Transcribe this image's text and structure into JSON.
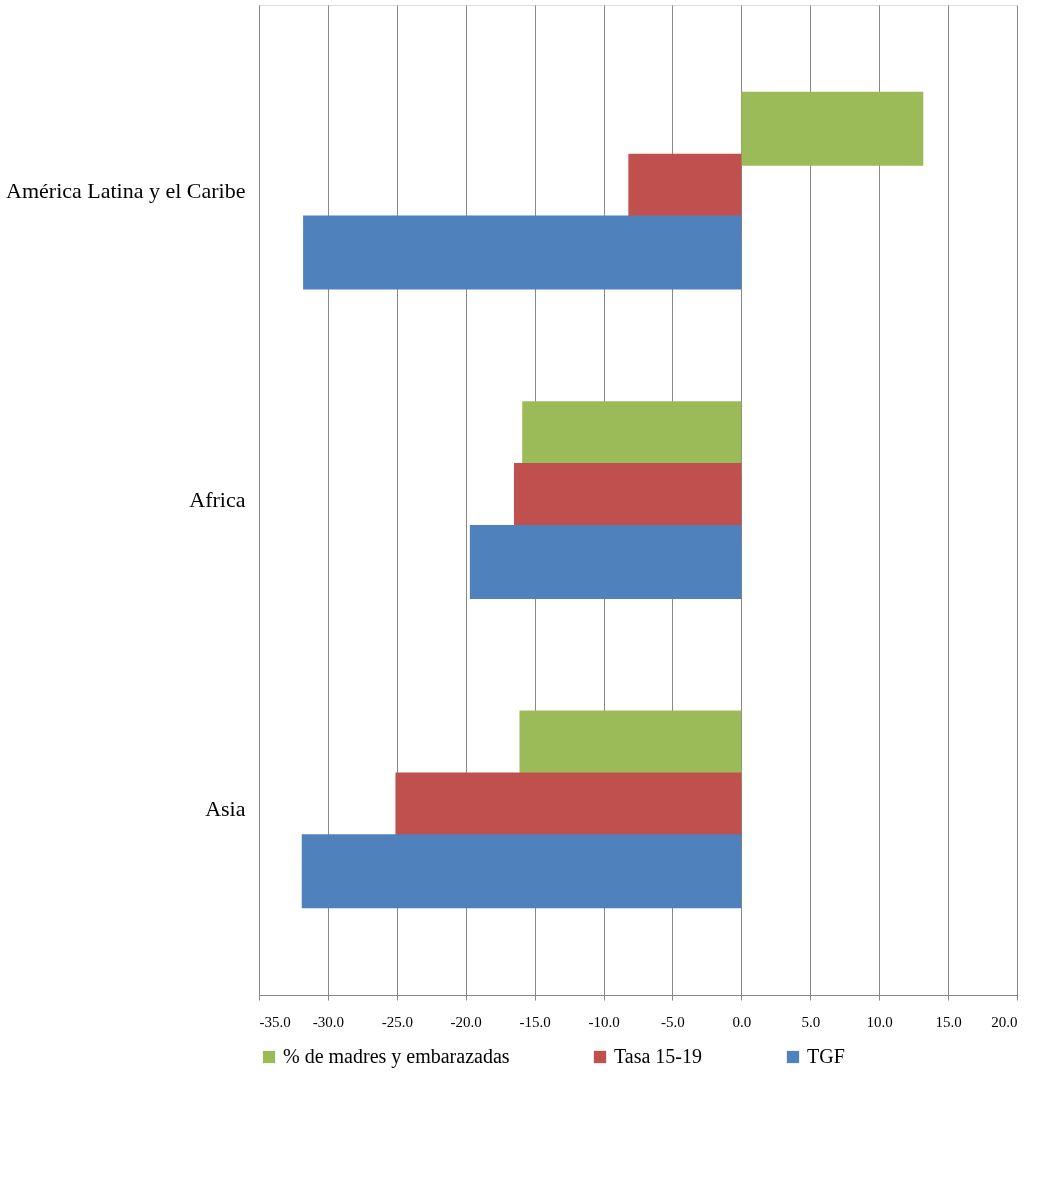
{
  "chart_data": {
    "type": "bar",
    "orientation": "horizontal",
    "categories": [
      "América Latina y el Caribe",
      "Africa",
      "Asia"
    ],
    "series": [
      {
        "name": "% de madres y embarazadas",
        "color": "#9bbb59",
        "values": [
          13.2,
          -15.9,
          -16.1
        ]
      },
      {
        "name": "Tasa 15-19",
        "color": "#c0504d",
        "values": [
          -8.2,
          -16.5,
          -25.1
        ]
      },
      {
        "name": "TGF",
        "color": "#4f81bd",
        "values": [
          -31.8,
          -19.7,
          -31.9
        ]
      }
    ],
    "xlim": [
      -35,
      20
    ],
    "xticks": [
      {
        "value": -35,
        "label": "-35.0"
      },
      {
        "value": -30,
        "label": "-30.0"
      },
      {
        "value": -25,
        "label": "-25.0"
      },
      {
        "value": -20,
        "label": "-20.0"
      },
      {
        "value": -15,
        "label": "-15.0"
      },
      {
        "value": -10,
        "label": "-10.0"
      },
      {
        "value": -5,
        "label": "-5.0"
      },
      {
        "value": 0,
        "label": "0.0"
      },
      {
        "value": 5,
        "label": "5.0"
      },
      {
        "value": 10,
        "label": "10.0"
      },
      {
        "value": 15,
        "label": "15.0"
      },
      {
        "value": 20,
        "label": "20.0"
      }
    ],
    "grid": "x",
    "legend": "bottom"
  }
}
